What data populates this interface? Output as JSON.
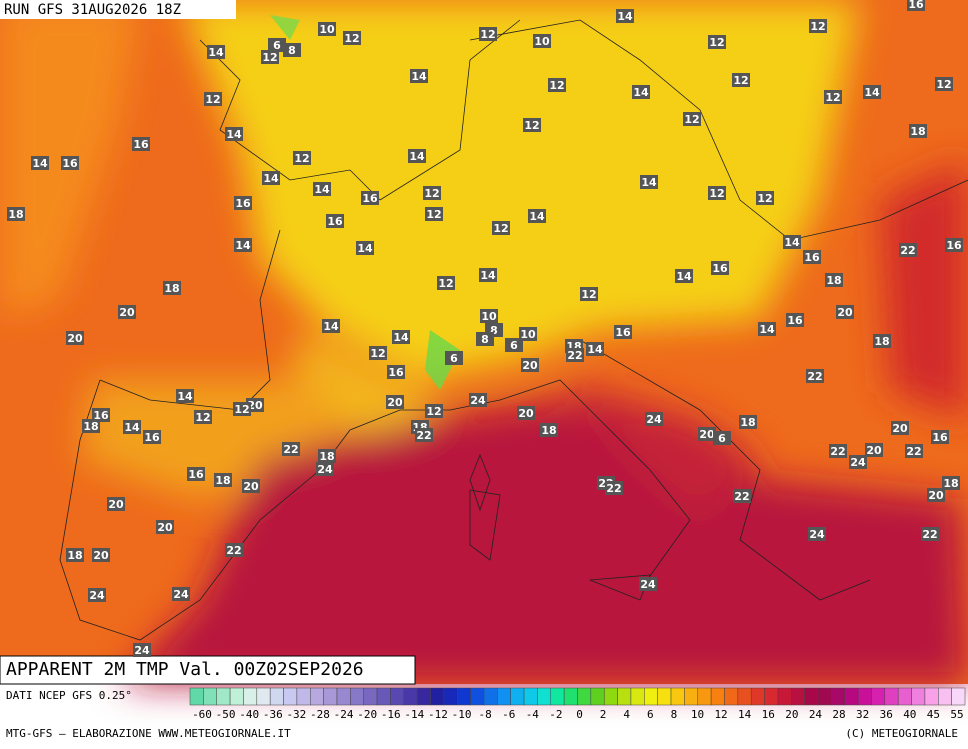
{
  "header": {
    "run": "RUN GFS 31AUG2026 18Z",
    "title": "APPARENT 2M TMP Val. 00Z02SEP2026"
  },
  "map": {
    "labels": [
      14,
      10,
      12,
      14,
      12,
      8,
      6,
      12,
      10,
      12,
      16,
      12,
      14,
      12,
      12,
      12,
      12,
      14,
      12,
      14,
      12,
      12,
      14,
      16,
      18,
      14,
      16,
      12,
      14,
      14,
      14,
      14,
      12,
      12,
      12,
      18,
      16,
      16,
      16,
      12,
      12,
      14,
      14,
      14,
      14,
      22,
      16,
      16,
      16,
      14,
      14,
      12,
      18,
      18,
      20,
      12,
      14,
      10,
      20,
      14,
      16,
      14,
      20,
      8,
      8,
      10,
      6,
      16,
      18,
      12,
      18,
      22,
      14,
      6,
      20,
      16,
      22,
      14,
      24,
      20,
      20,
      12,
      16,
      12,
      14,
      18,
      12,
      20,
      24,
      18,
      16,
      18,
      22,
      18,
      20,
      6,
      20,
      16,
      22,
      18,
      22,
      24,
      20,
      22,
      24,
      16,
      18,
      20,
      22,
      22,
      18,
      20,
      20,
      22,
      20,
      24,
      22,
      22,
      18,
      20,
      24,
      24,
      24,
      24
    ]
  },
  "legend": {
    "source": "DATI NCEP GFS 0.25°",
    "colors": [
      "#60d8a8",
      "#80e0b8",
      "#a0e8c8",
      "#c0f0d8",
      "#d8f0e8",
      "#e0e8f0",
      "#d0d8f0",
      "#c8c8f0",
      "#c0b8e8",
      "#b8a8e0",
      "#a898d8",
      "#9888d0",
      "#8878c8",
      "#7868c0",
      "#6858b8",
      "#5848b0",
      "#4838a8",
      "#3828a0",
      "#2020a0",
      "#1828b8",
      "#1038d0",
      "#1050e0",
      "#1070e8",
      "#1090f0",
      "#10b0f0",
      "#10c8e8",
      "#10e0d0",
      "#10e8a0",
      "#20e070",
      "#40d840",
      "#60d020",
      "#90d810",
      "#b8e010",
      "#d8e810",
      "#f0f010",
      "#f8e010",
      "#f8c810",
      "#f8b010",
      "#f89810",
      "#f88010",
      "#f06818",
      "#e85020",
      "#e03828",
      "#d82830",
      "#c81838",
      "#b81040",
      "#a80848",
      "#a00850",
      "#a80868",
      "#b80880",
      "#c81098",
      "#d820b0",
      "#e040c0",
      "#e860d0",
      "#f080e0",
      "#f8a0e8",
      "#f8c0f0",
      "#f8d8f8"
    ],
    "ticks": [
      -60,
      -50,
      -40,
      -36,
      -32,
      -28,
      -24,
      -20,
      -16,
      -14,
      -12,
      -10,
      -8,
      -6,
      -4,
      -2,
      0,
      2,
      4,
      6,
      8,
      10,
      12,
      14,
      16,
      20,
      24,
      28,
      32,
      36,
      40,
      45,
      55
    ]
  },
  "footer": {
    "credit": "MTG-GFS — ELABORAZIONE WWW.METEOGIORNALE.IT",
    "copyright": "(C) METEOGIORNALE"
  }
}
